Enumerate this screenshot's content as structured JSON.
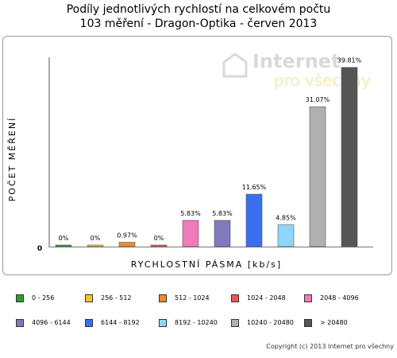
{
  "chart_data": {
    "type": "bar",
    "title": "Podíly jednotlivých rychlostí na celkovém počtu",
    "subtitle": "103 měření - Dragon-Optika - červen 2013",
    "xlabel": "RYCHLOSTNÍ PÁSMA [kb/s]",
    "ylabel": "POČET MĚŘENÍ",
    "ylim": [
      0,
      41
    ],
    "grid": false,
    "legend_position": "bottom",
    "categories": [
      "0 - 256",
      "256 - 512",
      "512 - 1024",
      "1024 - 2048",
      "2048 - 4096",
      "4096 - 6144",
      "6144 - 8192",
      "8192 - 10240",
      "10240 - 20480",
      "> 20480"
    ],
    "values": [
      0,
      0,
      0.97,
      0,
      5.83,
      5.83,
      11.65,
      4.85,
      31.07,
      39.81
    ],
    "data_labels": [
      "0%",
      "0%",
      "0.97%",
      "0%",
      "5.83%",
      "5.83%",
      "11.65%",
      "4.85%",
      "31.07%",
      "39.81%"
    ],
    "colors": [
      "#2e9a3a",
      "#f2c330",
      "#f08a30",
      "#ee5555",
      "#f07aba",
      "#7f7abc",
      "#3a6ff0",
      "#8ed6fa",
      "#b0b0b0",
      "#555555"
    ],
    "yaxis_tick_label": "0"
  },
  "watermark": {
    "line1": "Internet",
    "line2": "pro všechny"
  },
  "copyright": "Copyright (c) 2013 Internet pro všechny"
}
